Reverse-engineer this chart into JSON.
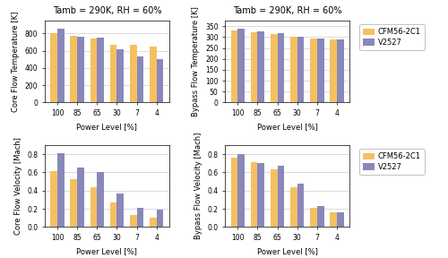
{
  "power_levels": [
    "100",
    "85",
    "65",
    "30",
    "7",
    "4"
  ],
  "title": "Tamb = 290K, RH = 60%",
  "cfm56_label": "CFM56-2C1",
  "v2527_label": "V2527",
  "cfm56_color": "#F5C060",
  "v2527_color": "#8888BB",
  "core_temp_cfm56": [
    810,
    775,
    745,
    670,
    665,
    645
  ],
  "core_temp_v2527": [
    855,
    760,
    750,
    615,
    535,
    505
  ],
  "core_temp_ylabel": "Core Flow Temperature [K]",
  "core_temp_ylim": [
    0,
    950
  ],
  "core_temp_yticks": [
    0,
    200,
    400,
    600,
    800
  ],
  "bypass_temp_cfm56": [
    328,
    320,
    313,
    300,
    292,
    290
  ],
  "bypass_temp_v2527": [
    340,
    325,
    318,
    303,
    292,
    290
  ],
  "bypass_temp_ylabel": "Bypass Flow Temperature [K]",
  "bypass_temp_ylim": [
    0,
    375
  ],
  "bypass_temp_yticks": [
    0,
    50,
    100,
    150,
    200,
    250,
    300,
    350
  ],
  "core_vel_cfm56": [
    0.61,
    0.53,
    0.44,
    0.27,
    0.13,
    0.1
  ],
  "core_vel_v2527": [
    0.81,
    0.65,
    0.6,
    0.37,
    0.21,
    0.19
  ],
  "core_vel_ylabel": "Core Flow Velocity [Mach]",
  "core_vel_ylim": [
    0,
    0.9
  ],
  "core_vel_yticks": [
    0.0,
    0.2,
    0.4,
    0.6,
    0.8
  ],
  "bypass_vel_cfm56": [
    0.76,
    0.71,
    0.63,
    0.44,
    0.21,
    0.16
  ],
  "bypass_vel_v2527": [
    0.8,
    0.7,
    0.67,
    0.48,
    0.23,
    0.16
  ],
  "bypass_vel_ylabel": "Bypass Flow Velocity [Mach]",
  "bypass_vel_ylim": [
    0,
    0.9
  ],
  "bypass_vel_yticks": [
    0.0,
    0.2,
    0.4,
    0.6,
    0.8
  ],
  "xlabel": "Power Level [%]",
  "bar_width": 0.35,
  "fontsize_title": 7,
  "fontsize_axis": 6,
  "fontsize_tick": 5.5,
  "fontsize_legend": 6
}
